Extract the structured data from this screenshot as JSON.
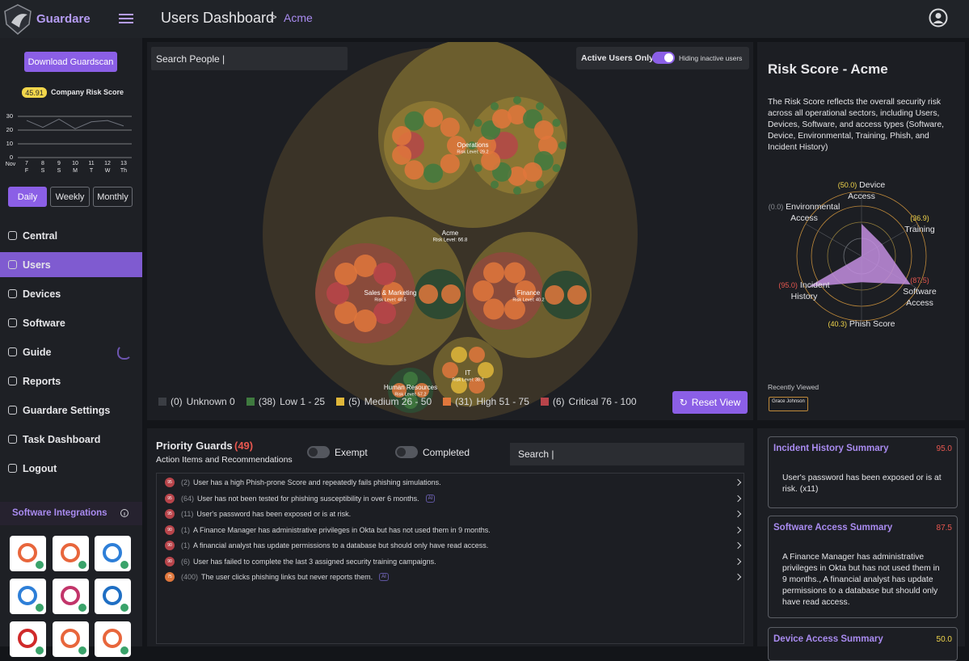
{
  "sidebar": {
    "brand": "Guardare",
    "download_button": "Download Guardscan",
    "company_risk": {
      "score": "45.91",
      "label": "Company Risk Score"
    },
    "risk_chart": {
      "type": "line",
      "month": "Nov",
      "categories": [
        "7",
        "8",
        "9",
        "10",
        "11",
        "12",
        "13"
      ],
      "weekdays": [
        "F",
        "S",
        "S",
        "M",
        "T",
        "W",
        "Th"
      ],
      "values": [
        27,
        22,
        28,
        21,
        26,
        27,
        23
      ],
      "ylim": [
        0,
        30
      ],
      "yticks": [
        0,
        10,
        20,
        30
      ],
      "color": "#6e727b",
      "grid": true
    },
    "periods": [
      "Daily",
      "Weekly",
      "Monthly"
    ],
    "nav": [
      "Central",
      "Users",
      "Devices",
      "Software",
      "Guide",
      "Reports",
      "Guardare Settings",
      "Task Dashboard",
      "Logout"
    ],
    "active_nav": "Users",
    "integrations_title": "Software Integrations"
  },
  "header": {
    "title": "Users Dashboard",
    "separator": ">",
    "org": "Acme"
  },
  "bubbles": {
    "search_placeholder": "Search People |",
    "active_toggle": "Active Users Only",
    "toggle_status": "Hiding inactive users",
    "root": {
      "label": "Acme",
      "risk": "Risk Level: 66.8"
    },
    "groups": [
      {
        "label": "Operations",
        "risk": "Risk Level: 29.2"
      },
      {
        "label": "Sales & Marketing",
        "risk": "Risk Level: 48.5"
      },
      {
        "label": "Finance",
        "risk": "Risk Level: 40.2"
      },
      {
        "label": "IT",
        "risk": "Risk Level: 38.7"
      },
      {
        "label": "Human Resources",
        "risk": "Risk Level: 57.2"
      }
    ],
    "legend": [
      {
        "count": "(0)",
        "label": "Unknown 0",
        "color": "#3b3e44"
      },
      {
        "count": "(38)",
        "label": "Low 1 - 25",
        "color": "#3f7a3f"
      },
      {
        "count": "(5)",
        "label": "Medium 26 - 50",
        "color": "#e0b73a"
      },
      {
        "count": "(31)",
        "label": "High 51 - 75",
        "color": "#e0773c"
      },
      {
        "count": "(6)",
        "label": "Critical 76 - 100",
        "color": "#b8444a"
      }
    ],
    "reset": "Reset View"
  },
  "risk_panel": {
    "title": "Risk Score - Acme",
    "description": "The Risk Score reflects the overall security risk across all operational sectors, including Users, Devices, Software, and access types (Software, Device, Environmental, Training, Phish, and Incident History)",
    "radar": {
      "type": "radar",
      "rlim": [
        0,
        100
      ],
      "fill": "#c38ee0",
      "axes": [
        {
          "label": "Device Access",
          "value": 50.0,
          "value_label": "(50.0)",
          "color": "#f2d64b"
        },
        {
          "label": "Training",
          "value": 36.9,
          "value_label": "(36.9)",
          "color": "#f2d64b"
        },
        {
          "label": "Software Access",
          "value": 87.5,
          "value_label": "(87.5)",
          "color": "#e8574f"
        },
        {
          "label": "Phish Score",
          "value": 40.3,
          "value_label": "(40.3)",
          "color": "#f2d64b"
        },
        {
          "label": "Incident History",
          "value": 95.0,
          "value_label": "(95.0)",
          "color": "#e8574f"
        },
        {
          "label": "Environmental Access",
          "value": 0.0,
          "value_label": "(0.0)",
          "color": "#8a8d93"
        }
      ]
    },
    "recently_viewed": "Recently Viewed",
    "recent_user": "Grace Johnson"
  },
  "priority": {
    "title": "Priority Guards",
    "count": "(49)",
    "subtitle": "Action Items and Recommendations",
    "exempt": "Exempt",
    "completed": "Completed",
    "search_placeholder": "Search |",
    "items": [
      {
        "badge": "95",
        "count": "(2)",
        "text": "User has a high Phish-prone Score and repeatedly fails phishing simulations."
      },
      {
        "badge": "95",
        "count": "(64)",
        "text": "User has not been tested for phishing susceptibility in over 6 months.",
        "ai_tag": "AI"
      },
      {
        "badge": "95",
        "count": "(11)",
        "text": "User's password has been exposed or is at risk."
      },
      {
        "badge": "90",
        "count": "(1)",
        "text": "A Finance Manager has administrative privileges in Okta but has not used them in 9 months."
      },
      {
        "badge": "90",
        "count": "(1)",
        "text": "A financial analyst has update permissions to a database but should only have read access."
      },
      {
        "badge": "90",
        "count": "(6)",
        "text": "User has failed to complete the last 3 assigned security training campaigns."
      },
      {
        "badge": "75",
        "count": "(400)",
        "text": "The user clicks phishing links but never reports them.",
        "ai_tag": "AI"
      }
    ]
  },
  "summaries": [
    {
      "title": "Incident History Summary",
      "score": "95.0",
      "score_color": "#e8574f",
      "body": "User's password has been exposed or is at risk. (x11)"
    },
    {
      "title": "Software Access Summary",
      "score": "87.5",
      "score_color": "#e8574f",
      "body": "A Finance Manager has administrative privileges in Okta but has not used them in 9 months., A financial analyst has update permissions to a database but should only have read access."
    },
    {
      "title": "Device Access Summary",
      "score": "50.0",
      "score_color": "#f2d64b"
    }
  ]
}
